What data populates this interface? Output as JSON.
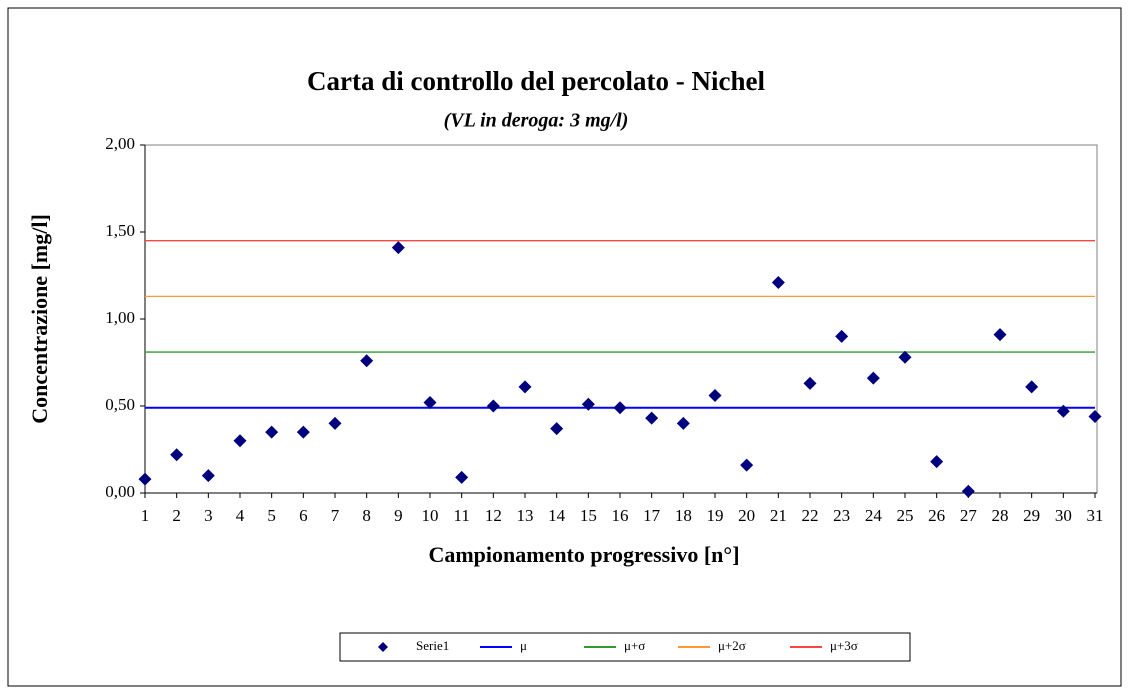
{
  "chart_data": {
    "type": "scatter",
    "title": "Carta di controllo del percolato - Nichel",
    "subtitle": "(VL in deroga: 3 mg/l)",
    "x_label": "Campionamento progressivo [n°]",
    "y_label": "Concentrazione [mg/l]",
    "x": [
      1,
      2,
      3,
      4,
      5,
      6,
      7,
      8,
      9,
      10,
      11,
      12,
      13,
      14,
      15,
      16,
      17,
      18,
      19,
      20,
      21,
      22,
      23,
      24,
      25,
      26,
      27,
      28,
      29,
      30,
      31
    ],
    "series": [
      {
        "name": "Serie1",
        "type": "scatter",
        "color": "#00007f",
        "values": [
          0.08,
          0.22,
          0.1,
          0.3,
          0.35,
          0.35,
          0.4,
          0.76,
          1.41,
          0.52,
          0.09,
          0.5,
          0.61,
          0.37,
          0.51,
          0.49,
          0.43,
          0.4,
          0.56,
          0.16,
          1.21,
          0.63,
          0.9,
          0.66,
          0.78,
          0.18,
          0.01,
          0.91,
          0.61,
          0.47,
          0.44
        ]
      },
      {
        "name": "μ",
        "type": "line",
        "color": "#0000ff",
        "values": [
          0.49,
          0.49,
          0.49,
          0.49,
          0.49,
          0.49,
          0.49,
          0.49,
          0.49,
          0.49,
          0.49,
          0.49,
          0.49,
          0.49,
          0.49,
          0.49,
          0.49,
          0.49,
          0.49,
          0.49,
          0.49,
          0.49,
          0.49,
          0.49,
          0.49,
          0.49,
          0.49,
          0.49,
          0.49,
          0.49,
          0.49
        ]
      },
      {
        "name": "μ+σ",
        "type": "line",
        "color": "#339933",
        "values": [
          0.81,
          0.81,
          0.81,
          0.81,
          0.81,
          0.81,
          0.81,
          0.81,
          0.81,
          0.81,
          0.81,
          0.81,
          0.81,
          0.81,
          0.81,
          0.81,
          0.81,
          0.81,
          0.81,
          0.81,
          0.81,
          0.81,
          0.81,
          0.81,
          0.81,
          0.81,
          0.81,
          0.81,
          0.81,
          0.81,
          0.81
        ]
      },
      {
        "name": "μ+2σ",
        "type": "line",
        "color": "#ff9933",
        "values": [
          1.13,
          1.13,
          1.13,
          1.13,
          1.13,
          1.13,
          1.13,
          1.13,
          1.13,
          1.13,
          1.13,
          1.13,
          1.13,
          1.13,
          1.13,
          1.13,
          1.13,
          1.13,
          1.13,
          1.13,
          1.13,
          1.13,
          1.13,
          1.13,
          1.13,
          1.13,
          1.13,
          1.13,
          1.13,
          1.13,
          1.13
        ]
      },
      {
        "name": "μ+3σ",
        "type": "line",
        "color": "#ff4444",
        "values": [
          1.45,
          1.45,
          1.45,
          1.45,
          1.45,
          1.45,
          1.45,
          1.45,
          1.45,
          1.45,
          1.45,
          1.45,
          1.45,
          1.45,
          1.45,
          1.45,
          1.45,
          1.45,
          1.45,
          1.45,
          1.45,
          1.45,
          1.45,
          1.45,
          1.45,
          1.45,
          1.45,
          1.45,
          1.45,
          1.45,
          1.45
        ]
      }
    ],
    "xlim": [
      1,
      31
    ],
    "xticks": [
      1,
      2,
      3,
      4,
      5,
      6,
      7,
      8,
      9,
      10,
      11,
      12,
      13,
      14,
      15,
      16,
      17,
      18,
      19,
      20,
      21,
      22,
      23,
      24,
      25,
      26,
      27,
      28,
      29,
      30,
      31
    ],
    "ylim": [
      0,
      2
    ],
    "yticks": [
      {
        "value": 0,
        "label": "0,00"
      },
      {
        "value": 0.5,
        "label": "0,50"
      },
      {
        "value": 1,
        "label": "1,00"
      },
      {
        "value": 1.5,
        "label": "1,50"
      },
      {
        "value": 2,
        "label": "2,00"
      }
    ],
    "legend": "bottom"
  }
}
